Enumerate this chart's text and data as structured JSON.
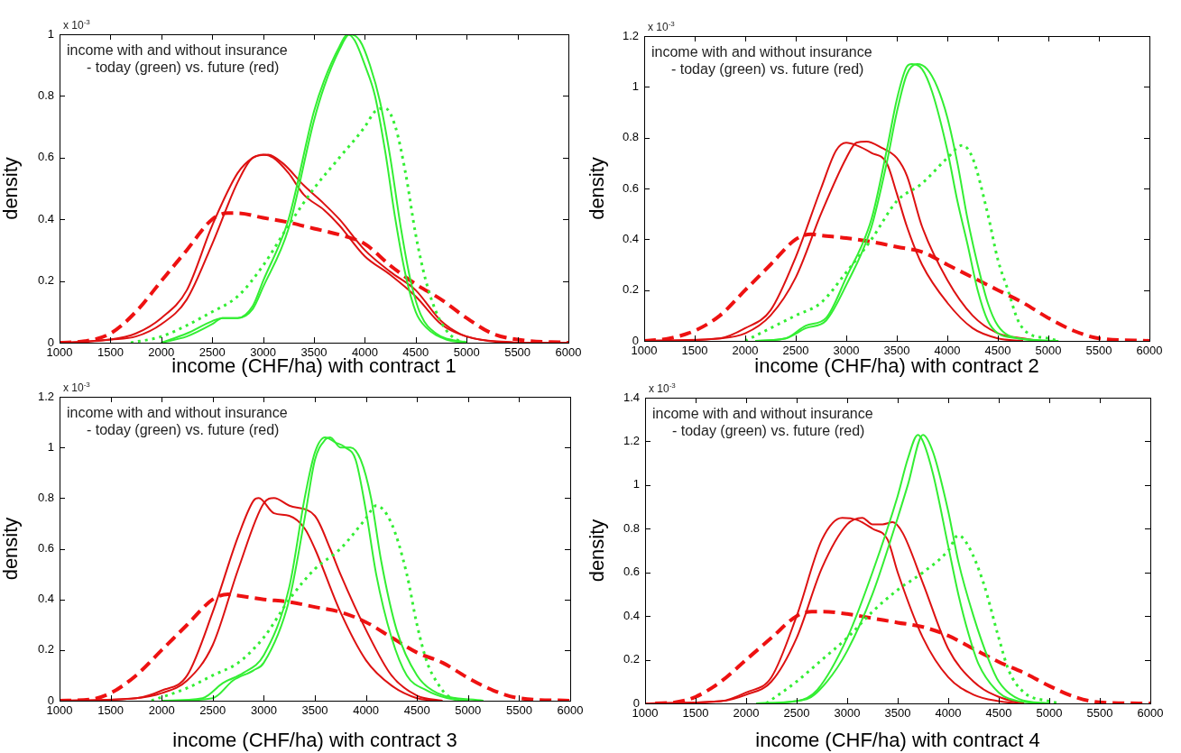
{
  "chart_data": [
    {
      "type": "line",
      "xlabel": "income (CHF/ha) with contract 1",
      "ylabel": "density",
      "xlim": [
        1000,
        6000
      ],
      "xticks": [
        1000,
        1500,
        2000,
        2500,
        3000,
        3500,
        4000,
        4500,
        5000,
        5500,
        6000
      ],
      "ylim": [
        0,
        1
      ],
      "yticks": [
        0,
        0.2,
        0.4,
        0.6,
        0.8,
        1
      ],
      "annotations": [
        "x 10$^{-3}$",
        "income with and without insurance",
        "- today (green) vs. future (red)"
      ],
      "series": [
        {
          "color": "#33ee33",
          "line_style": "dotted",
          "x": [
            1700,
            2000,
            2500,
            2750,
            3000,
            3250,
            3500,
            3750,
            4000,
            4100,
            4200,
            4300,
            4400,
            4500,
            4600,
            4700,
            4800,
            4900,
            5000
          ],
          "values": [
            0,
            0.02,
            0.1,
            0.15,
            0.25,
            0.38,
            0.5,
            0.6,
            0.7,
            0.75,
            0.76,
            0.7,
            0.55,
            0.35,
            0.2,
            0.1,
            0.04,
            0.01,
            0
          ]
        },
        {
          "color": "#33ee33",
          "line_style": "solid",
          "x": [
            2000,
            2250,
            2500,
            2600,
            2750,
            2900,
            3000,
            3250,
            3500,
            3600,
            3750,
            3830,
            3900,
            4000,
            4100,
            4200,
            4300,
            4400,
            4500,
            4600,
            4800,
            5000
          ],
          "values": [
            0,
            0.03,
            0.07,
            0.08,
            0.08,
            0.12,
            0.2,
            0.4,
            0.75,
            0.85,
            0.96,
            1,
            0.98,
            0.9,
            0.8,
            0.62,
            0.4,
            0.22,
            0.1,
            0.05,
            0.01,
            0
          ]
        },
        {
          "color": "#33ee33",
          "line_style": "solid",
          "x": [
            2000,
            2250,
            2500,
            2600,
            2750,
            2900,
            3000,
            3250,
            3500,
            3600,
            3750,
            3850,
            3950,
            4050,
            4150,
            4250,
            4350,
            4450,
            4550,
            4700,
            5000
          ],
          "values": [
            0,
            0.02,
            0.06,
            0.08,
            0.08,
            0.11,
            0.18,
            0.37,
            0.72,
            0.83,
            0.95,
            1,
            0.98,
            0.9,
            0.78,
            0.6,
            0.38,
            0.2,
            0.09,
            0.03,
            0
          ]
        },
        {
          "color": "#dd1111",
          "line_style": "solid",
          "x": [
            1000,
            1500,
            1750,
            2000,
            2250,
            2500,
            2750,
            2900,
            3000,
            3100,
            3250,
            3400,
            3600,
            3750,
            4000,
            4250,
            4500,
            4750,
            5000,
            5500,
            6000
          ],
          "values": [
            0,
            0.01,
            0.03,
            0.08,
            0.17,
            0.38,
            0.55,
            0.6,
            0.61,
            0.6,
            0.55,
            0.48,
            0.43,
            0.38,
            0.28,
            0.22,
            0.15,
            0.06,
            0.02,
            0,
            0
          ]
        },
        {
          "color": "#dd1111",
          "line_style": "solid",
          "x": [
            1100,
            1500,
            1750,
            2000,
            2250,
            2500,
            2750,
            2900,
            3050,
            3200,
            3400,
            3600,
            3750,
            4000,
            4250,
            4500,
            4750,
            5000,
            5500
          ],
          "values": [
            0,
            0.01,
            0.02,
            0.06,
            0.14,
            0.32,
            0.52,
            0.6,
            0.61,
            0.58,
            0.51,
            0.45,
            0.4,
            0.3,
            0.23,
            0.17,
            0.07,
            0.02,
            0
          ]
        },
        {
          "color": "#ee1111",
          "line_style": "dashed",
          "x": [
            1000,
            1250,
            1500,
            1750,
            2000,
            2250,
            2500,
            2650,
            2750,
            3000,
            3250,
            3500,
            3750,
            4000,
            4250,
            4500,
            4750,
            5000,
            5250,
            5500,
            6000
          ],
          "values": [
            0,
            0.005,
            0.03,
            0.1,
            0.2,
            0.3,
            0.4,
            0.42,
            0.42,
            0.405,
            0.39,
            0.37,
            0.35,
            0.32,
            0.25,
            0.19,
            0.14,
            0.08,
            0.03,
            0.01,
            0
          ]
        }
      ]
    },
    {
      "type": "line",
      "xlabel": "income (CHF/ha) with contract 2",
      "ylabel": "density",
      "xlim": [
        1000,
        6000
      ],
      "xticks": [
        1000,
        1500,
        2000,
        2500,
        3000,
        3500,
        4000,
        4500,
        5000,
        5500,
        6000
      ],
      "ylim": [
        0,
        1.2
      ],
      "yticks": [
        0,
        0.2,
        0.4,
        0.6,
        0.8,
        1,
        1.2
      ],
      "annotations": [
        "x 10$^{-3}$",
        "income with and without insurance",
        "- today (green) vs. future (red)"
      ],
      "series": [
        {
          "color": "#33ee33",
          "line_style": "dotted",
          "x": [
            2000,
            2500,
            2750,
            3000,
            3250,
            3500,
            3750,
            4000,
            4150,
            4250,
            4400,
            4500,
            4600,
            4700,
            4800,
            5000,
            5100
          ],
          "values": [
            0,
            0.1,
            0.15,
            0.27,
            0.4,
            0.55,
            0.62,
            0.72,
            0.77,
            0.72,
            0.5,
            0.32,
            0.2,
            0.08,
            0.03,
            0.01,
            0
          ]
        },
        {
          "color": "#33ee33",
          "line_style": "solid",
          "x": [
            2100,
            2400,
            2600,
            2800,
            3000,
            3250,
            3400,
            3500,
            3600,
            3650,
            3750,
            3850,
            4000,
            4100,
            4200,
            4300,
            4400,
            4500,
            4700,
            5000
          ],
          "values": [
            0,
            0.01,
            0.06,
            0.09,
            0.25,
            0.48,
            0.75,
            0.95,
            1.08,
            1.09,
            1.07,
            0.98,
            0.75,
            0.55,
            0.38,
            0.2,
            0.08,
            0.03,
            0.01,
            0
          ]
        },
        {
          "color": "#33ee33",
          "line_style": "solid",
          "x": [
            2100,
            2400,
            2600,
            2800,
            3000,
            3250,
            3400,
            3500,
            3600,
            3700,
            3800,
            3900,
            4000,
            4100,
            4200,
            4300,
            4400,
            4500,
            4700,
            5100
          ],
          "values": [
            0,
            0.01,
            0.05,
            0.08,
            0.22,
            0.45,
            0.7,
            0.9,
            1.05,
            1.09,
            1.07,
            1,
            0.88,
            0.7,
            0.48,
            0.3,
            0.15,
            0.06,
            0.01,
            0
          ]
        },
        {
          "color": "#dd1111",
          "line_style": "solid",
          "x": [
            1000,
            1750,
            2000,
            2250,
            2500,
            2750,
            2900,
            3000,
            3100,
            3250,
            3400,
            3500,
            3600,
            3750,
            4000,
            4250,
            4500,
            4750
          ],
          "values": [
            0,
            0.01,
            0.05,
            0.12,
            0.33,
            0.6,
            0.75,
            0.78,
            0.77,
            0.74,
            0.7,
            0.58,
            0.45,
            0.3,
            0.15,
            0.05,
            0.01,
            0
          ]
        },
        {
          "color": "#dd1111",
          "line_style": "solid",
          "x": [
            1000,
            1750,
            2000,
            2250,
            2500,
            2750,
            3000,
            3100,
            3200,
            3350,
            3500,
            3600,
            3750,
            4000,
            4250,
            4500,
            4750,
            4900
          ],
          "values": [
            0,
            0.01,
            0.03,
            0.1,
            0.25,
            0.5,
            0.72,
            0.78,
            0.785,
            0.76,
            0.72,
            0.65,
            0.45,
            0.24,
            0.1,
            0.03,
            0.01,
            0
          ]
        },
        {
          "color": "#ee1111",
          "line_style": "dashed",
          "x": [
            1000,
            1250,
            1500,
            1750,
            2000,
            2250,
            2500,
            2650,
            2750,
            3000,
            3250,
            3500,
            3750,
            4000,
            4250,
            4500,
            4750,
            5000,
            5250,
            5500,
            6000
          ],
          "values": [
            0,
            0.01,
            0.04,
            0.1,
            0.2,
            0.3,
            0.4,
            0.42,
            0.415,
            0.405,
            0.39,
            0.37,
            0.35,
            0.3,
            0.25,
            0.2,
            0.15,
            0.09,
            0.04,
            0.01,
            0
          ]
        }
      ]
    },
    {
      "type": "line",
      "xlabel": "income (CHF/ha) with contract 3",
      "ylabel": "density",
      "xlim": [
        1000,
        6000
      ],
      "xticks": [
        1000,
        1500,
        2000,
        2500,
        3000,
        3500,
        4000,
        4500,
        5000,
        5500,
        6000
      ],
      "ylim": [
        0,
        1.2
      ],
      "yticks": [
        0,
        0.2,
        0.4,
        0.6,
        0.8,
        1,
        1.2
      ],
      "annotations": [
        "x 10$^{-3}$",
        "income with and without insurance",
        "- today (green) vs. future (red)"
      ],
      "series": [
        {
          "color": "#33ee33",
          "line_style": "dotted",
          "x": [
            1900,
            2250,
            2500,
            2750,
            3000,
            3250,
            3500,
            3750,
            4000,
            4100,
            4250,
            4400,
            4500,
            4600,
            4700,
            4800,
            5000
          ],
          "values": [
            0,
            0.05,
            0.1,
            0.15,
            0.25,
            0.4,
            0.52,
            0.6,
            0.72,
            0.77,
            0.7,
            0.5,
            0.3,
            0.15,
            0.07,
            0.02,
            0
          ]
        },
        {
          "color": "#33ee33",
          "line_style": "solid",
          "x": [
            2000,
            2400,
            2600,
            2800,
            3000,
            3250,
            3400,
            3500,
            3600,
            3700,
            3800,
            3900,
            4000,
            4100,
            4250,
            4400,
            4600,
            4800,
            5000
          ],
          "values": [
            0,
            0.01,
            0.07,
            0.11,
            0.18,
            0.45,
            0.8,
            0.98,
            1.04,
            1.02,
            1,
            0.95,
            0.75,
            0.5,
            0.25,
            0.1,
            0.04,
            0.01,
            0
          ]
        },
        {
          "color": "#33ee33",
          "line_style": "solid",
          "x": [
            2100,
            2500,
            2700,
            2900,
            3000,
            3250,
            3400,
            3500,
            3600,
            3650,
            3750,
            3850,
            3950,
            4050,
            4150,
            4300,
            4500,
            4700,
            5150
          ],
          "values": [
            0,
            0.01,
            0.08,
            0.12,
            0.15,
            0.4,
            0.72,
            0.95,
            1.03,
            1.04,
            1,
            1,
            0.95,
            0.8,
            0.55,
            0.28,
            0.1,
            0.03,
            0
          ]
        },
        {
          "color": "#dd1111",
          "line_style": "solid",
          "x": [
            1000,
            1750,
            2000,
            2250,
            2500,
            2750,
            2900,
            2950,
            3100,
            3250,
            3400,
            3500,
            3750,
            4000,
            4250,
            4500,
            4700
          ],
          "values": [
            0,
            0.01,
            0.04,
            0.1,
            0.35,
            0.65,
            0.79,
            0.8,
            0.74,
            0.73,
            0.68,
            0.6,
            0.35,
            0.16,
            0.06,
            0.01,
            0
          ]
        },
        {
          "color": "#dd1111",
          "line_style": "solid",
          "x": [
            1000,
            1750,
            2000,
            2250,
            2500,
            2750,
            3000,
            3100,
            3250,
            3500,
            3650,
            3750,
            4000,
            4250,
            4500,
            4750
          ],
          "values": [
            0,
            0.01,
            0.03,
            0.08,
            0.22,
            0.52,
            0.78,
            0.8,
            0.77,
            0.73,
            0.6,
            0.5,
            0.28,
            0.1,
            0.02,
            0
          ]
        },
        {
          "color": "#ee1111",
          "line_style": "dashed",
          "x": [
            1000,
            1300,
            1500,
            1750,
            2000,
            2250,
            2500,
            2650,
            2750,
            3000,
            3250,
            3500,
            3750,
            4000,
            4250,
            4500,
            4750,
            5000,
            5250,
            5500,
            6000
          ],
          "values": [
            0,
            0.005,
            0.03,
            0.1,
            0.2,
            0.3,
            0.4,
            0.42,
            0.415,
            0.4,
            0.39,
            0.37,
            0.35,
            0.31,
            0.25,
            0.19,
            0.15,
            0.09,
            0.04,
            0.01,
            0
          ]
        }
      ]
    },
    {
      "type": "line",
      "xlabel": "income (CHF/ha) with contract 4",
      "ylabel": "density",
      "xlim": [
        1000,
        6000
      ],
      "xticks": [
        1000,
        1500,
        2000,
        2500,
        3000,
        3500,
        4000,
        4500,
        5000,
        5500,
        6000
      ],
      "ylim": [
        0,
        1.4
      ],
      "yticks": [
        0,
        0.2,
        0.4,
        0.6,
        0.8,
        1,
        1.2,
        1.4
      ],
      "annotations": [
        "x 10$^{-3}$",
        "income with and without insurance",
        "- today (green) vs. future (red)"
      ],
      "series": [
        {
          "color": "#33ee33",
          "line_style": "dotted",
          "x": [
            2200,
            2500,
            2750,
            3000,
            3250,
            3500,
            3750,
            4000,
            4100,
            4200,
            4350,
            4500,
            4600,
            4750,
            5000,
            5100
          ],
          "values": [
            0,
            0.1,
            0.2,
            0.3,
            0.42,
            0.52,
            0.6,
            0.7,
            0.77,
            0.72,
            0.55,
            0.3,
            0.15,
            0.05,
            0.01,
            0
          ]
        },
        {
          "color": "#33ee33",
          "line_style": "solid",
          "x": [
            2100,
            2500,
            2700,
            3000,
            3250,
            3500,
            3600,
            3700,
            3750,
            3850,
            4000,
            4100,
            4200,
            4300,
            4500,
            4700,
            5000
          ],
          "values": [
            0,
            0.01,
            0.06,
            0.3,
            0.6,
            0.95,
            1.12,
            1.23,
            1.2,
            1.05,
            0.72,
            0.5,
            0.32,
            0.18,
            0.05,
            0.01,
            0
          ]
        },
        {
          "color": "#33ee33",
          "line_style": "solid",
          "x": [
            2100,
            2600,
            2800,
            3000,
            3250,
            3500,
            3600,
            3750,
            3850,
            4000,
            4100,
            4250,
            4400,
            4500,
            4700,
            5000
          ],
          "values": [
            0,
            0.02,
            0.1,
            0.24,
            0.5,
            0.85,
            1,
            1.23,
            1.15,
            0.88,
            0.65,
            0.4,
            0.2,
            0.1,
            0.02,
            0
          ]
        },
        {
          "color": "#dd1111",
          "line_style": "solid",
          "x": [
            1000,
            1750,
            2000,
            2250,
            2500,
            2750,
            2950,
            3100,
            3250,
            3400,
            3500,
            3750,
            4000,
            4250,
            4500,
            4700
          ],
          "values": [
            0,
            0.01,
            0.05,
            0.12,
            0.4,
            0.75,
            0.85,
            0.84,
            0.8,
            0.75,
            0.6,
            0.3,
            0.12,
            0.04,
            0.01,
            0
          ]
        },
        {
          "color": "#dd1111",
          "line_style": "solid",
          "x": [
            1000,
            1750,
            2000,
            2250,
            2500,
            2750,
            3000,
            3150,
            3250,
            3350,
            3450,
            3550,
            3750,
            4000,
            4250,
            4500,
            4750
          ],
          "values": [
            0,
            0.01,
            0.04,
            0.1,
            0.3,
            0.62,
            0.82,
            0.85,
            0.82,
            0.82,
            0.83,
            0.78,
            0.55,
            0.25,
            0.1,
            0.03,
            0
          ]
        },
        {
          "color": "#ee1111",
          "line_style": "dashed",
          "x": [
            1100,
            1300,
            1500,
            1750,
            2000,
            2250,
            2500,
            2650,
            2750,
            3000,
            3250,
            3500,
            3750,
            4000,
            4250,
            4500,
            4750,
            5000,
            5250,
            5500,
            6000
          ],
          "values": [
            0,
            0.005,
            0.03,
            0.1,
            0.2,
            0.3,
            0.4,
            0.42,
            0.42,
            0.41,
            0.39,
            0.37,
            0.35,
            0.31,
            0.25,
            0.19,
            0.14,
            0.08,
            0.03,
            0.005,
            0
          ]
        }
      ]
    }
  ]
}
